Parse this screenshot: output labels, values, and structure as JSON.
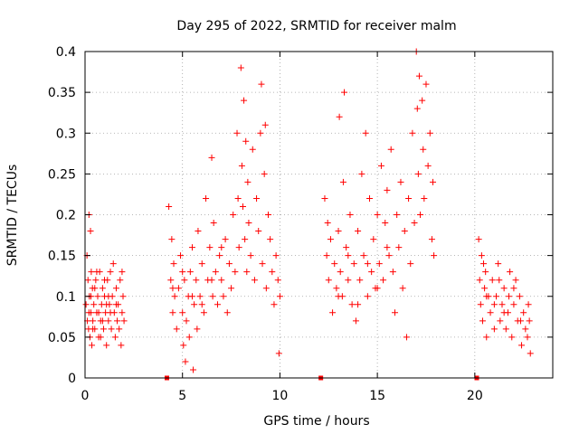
{
  "chart_data": {
    "type": "scatter",
    "title": "Day 295 of 2022, SRMTID for receiver malm",
    "xlabel": "GPS time / hours",
    "ylabel": "SRMTID / TECUs",
    "xlim": [
      0,
      24
    ],
    "ylim": [
      0,
      0.4
    ],
    "xticks": [
      0,
      5,
      10,
      15,
      20
    ],
    "xtick_labels": [
      "0",
      "5",
      "10",
      "15",
      "20"
    ],
    "yticks": [
      0,
      0.05,
      0.1,
      0.15,
      0.2,
      0.25,
      0.3,
      0.35,
      0.4
    ],
    "ytick_labels": [
      "0",
      "0.05",
      "0.1",
      "0.15",
      "0.2",
      "0.25",
      "0.3",
      "0.35",
      "0.4"
    ],
    "grid": true,
    "marker": "+",
    "color": "#ff0000",
    "gap_markers": [
      {
        "x": 4.2,
        "y": 0
      },
      {
        "x": 12.1,
        "y": 0
      },
      {
        "x": 20.1,
        "y": 0
      }
    ],
    "series": [
      {
        "name": "malm",
        "points": [
          [
            0.05,
            0.09
          ],
          [
            0.1,
            0.15
          ],
          [
            0.12,
            0.07
          ],
          [
            0.15,
            0.12
          ],
          [
            0.18,
            0.06
          ],
          [
            0.2,
            0.2
          ],
          [
            0.22,
            0.1
          ],
          [
            0.25,
            0.05
          ],
          [
            0.28,
            0.18
          ],
          [
            0.3,
            0.08
          ],
          [
            0.32,
            0.13
          ],
          [
            0.35,
            0.04
          ],
          [
            0.38,
            0.11
          ],
          [
            0.4,
            0.07
          ],
          [
            0.45,
            0.09
          ],
          [
            0.5,
            0.06
          ],
          [
            0.55,
            0.12
          ],
          [
            0.6,
            0.08
          ],
          [
            0.65,
            0.1
          ],
          [
            0.7,
            0.05
          ],
          [
            0.75,
            0.13
          ],
          [
            0.8,
            0.07
          ],
          [
            0.85,
            0.09
          ],
          [
            0.9,
            0.11
          ],
          [
            0.95,
            0.06
          ],
          [
            1.0,
            0.1
          ],
          [
            1.05,
            0.08
          ],
          [
            1.1,
            0.04
          ],
          [
            1.15,
            0.12
          ],
          [
            1.2,
            0.07
          ],
          [
            1.25,
            0.09
          ],
          [
            1.3,
            0.13
          ],
          [
            1.35,
            0.06
          ],
          [
            1.4,
            0.1
          ],
          [
            1.45,
            0.14
          ],
          [
            1.5,
            0.08
          ],
          [
            1.55,
            0.05
          ],
          [
            1.6,
            0.11
          ],
          [
            1.65,
            0.07
          ],
          [
            1.7,
            0.09
          ],
          [
            1.75,
            0.06
          ],
          [
            1.8,
            0.12
          ],
          [
            1.85,
            0.04
          ],
          [
            1.9,
            0.08
          ],
          [
            1.95,
            0.1
          ],
          [
            2.0,
            0.07
          ],
          [
            0.3,
            0.1
          ],
          [
            0.6,
            0.13
          ],
          [
            0.9,
            0.07
          ],
          [
            1.2,
            0.1
          ],
          [
            0.4,
            0.06
          ],
          [
            0.7,
            0.08
          ],
          [
            1.0,
            0.12
          ],
          [
            1.3,
            0.08
          ],
          [
            1.6,
            0.09
          ],
          [
            1.9,
            0.13
          ],
          [
            0.2,
            0.08
          ],
          [
            0.5,
            0.11
          ],
          [
            0.8,
            0.05
          ],
          [
            1.1,
            0.09
          ],
          [
            4.3,
            0.21
          ],
          [
            4.4,
            0.12
          ],
          [
            4.45,
            0.17
          ],
          [
            4.5,
            0.08
          ],
          [
            4.55,
            0.14
          ],
          [
            4.6,
            0.1
          ],
          [
            4.7,
            0.06
          ],
          [
            4.8,
            0.11
          ],
          [
            4.9,
            0.15
          ],
          [
            5.0,
            0.08
          ],
          [
            5.05,
            0.04
          ],
          [
            5.1,
            0.12
          ],
          [
            5.15,
            0.02
          ],
          [
            5.2,
            0.07
          ],
          [
            5.3,
            0.1
          ],
          [
            5.35,
            0.05
          ],
          [
            5.4,
            0.13
          ],
          [
            5.5,
            0.16
          ],
          [
            5.55,
            0.01
          ],
          [
            5.6,
            0.09
          ],
          [
            5.7,
            0.12
          ],
          [
            5.75,
            0.06
          ],
          [
            5.8,
            0.18
          ],
          [
            5.9,
            0.1
          ],
          [
            6.0,
            0.14
          ],
          [
            6.1,
            0.08
          ],
          [
            6.2,
            0.22
          ],
          [
            6.3,
            0.12
          ],
          [
            6.4,
            0.16
          ],
          [
            6.5,
            0.27
          ],
          [
            6.55,
            0.1
          ],
          [
            6.6,
            0.19
          ],
          [
            6.7,
            0.13
          ],
          [
            6.8,
            0.09
          ],
          [
            6.9,
            0.15
          ],
          [
            7.0,
            0.12
          ],
          [
            7.1,
            0.1
          ],
          [
            7.2,
            0.17
          ],
          [
            7.3,
            0.08
          ],
          [
            7.4,
            0.14
          ],
          [
            7.5,
            0.11
          ],
          [
            7.6,
            0.2
          ],
          [
            7.7,
            0.13
          ],
          [
            7.8,
            0.3
          ],
          [
            7.85,
            0.22
          ],
          [
            7.9,
            0.16
          ],
          [
            8.0,
            0.38
          ],
          [
            8.05,
            0.26
          ],
          [
            8.1,
            0.21
          ],
          [
            8.15,
            0.34
          ],
          [
            8.2,
            0.17
          ],
          [
            8.25,
            0.29
          ],
          [
            8.3,
            0.13
          ],
          [
            8.35,
            0.24
          ],
          [
            8.4,
            0.19
          ],
          [
            8.5,
            0.15
          ],
          [
            8.6,
            0.28
          ],
          [
            8.7,
            0.12
          ],
          [
            8.8,
            0.22
          ],
          [
            8.9,
            0.18
          ],
          [
            9.0,
            0.3
          ],
          [
            9.05,
            0.36
          ],
          [
            9.1,
            0.14
          ],
          [
            9.2,
            0.25
          ],
          [
            9.25,
            0.31
          ],
          [
            9.3,
            0.11
          ],
          [
            9.4,
            0.2
          ],
          [
            9.5,
            0.17
          ],
          [
            9.6,
            0.13
          ],
          [
            9.7,
            0.09
          ],
          [
            9.8,
            0.15
          ],
          [
            9.9,
            0.12
          ],
          [
            10.0,
            0.1
          ],
          [
            9.95,
            0.03
          ],
          [
            4.5,
            0.11
          ],
          [
            5.0,
            0.13
          ],
          [
            5.5,
            0.1
          ],
          [
            6.0,
            0.09
          ],
          [
            6.5,
            0.12
          ],
          [
            7.0,
            0.16
          ],
          [
            12.3,
            0.22
          ],
          [
            12.4,
            0.15
          ],
          [
            12.45,
            0.19
          ],
          [
            12.5,
            0.12
          ],
          [
            12.6,
            0.17
          ],
          [
            12.7,
            0.08
          ],
          [
            12.8,
            0.14
          ],
          [
            12.9,
            0.11
          ],
          [
            13.0,
            0.18
          ],
          [
            13.05,
            0.32
          ],
          [
            13.1,
            0.13
          ],
          [
            13.2,
            0.1
          ],
          [
            13.25,
            0.24
          ],
          [
            13.3,
            0.35
          ],
          [
            13.4,
            0.16
          ],
          [
            13.5,
            0.12
          ],
          [
            13.6,
            0.2
          ],
          [
            13.7,
            0.09
          ],
          [
            13.8,
            0.14
          ],
          [
            13.9,
            0.07
          ],
          [
            14.0,
            0.18
          ],
          [
            14.1,
            0.12
          ],
          [
            14.2,
            0.25
          ],
          [
            14.3,
            0.15
          ],
          [
            14.4,
            0.3
          ],
          [
            14.5,
            0.1
          ],
          [
            14.6,
            0.22
          ],
          [
            14.7,
            0.13
          ],
          [
            14.8,
            0.17
          ],
          [
            14.9,
            0.11
          ],
          [
            15.0,
            0.2
          ],
          [
            15.1,
            0.14
          ],
          [
            15.2,
            0.26
          ],
          [
            15.3,
            0.12
          ],
          [
            15.4,
            0.19
          ],
          [
            15.5,
            0.23
          ],
          [
            15.6,
            0.15
          ],
          [
            15.7,
            0.28
          ],
          [
            15.8,
            0.13
          ],
          [
            15.9,
            0.08
          ],
          [
            16.0,
            0.2
          ],
          [
            16.1,
            0.16
          ],
          [
            16.2,
            0.24
          ],
          [
            16.3,
            0.11
          ],
          [
            16.4,
            0.18
          ],
          [
            16.5,
            0.05
          ],
          [
            16.6,
            0.22
          ],
          [
            16.7,
            0.14
          ],
          [
            16.8,
            0.3
          ],
          [
            16.9,
            0.19
          ],
          [
            17.0,
            0.4
          ],
          [
            17.05,
            0.33
          ],
          [
            17.1,
            0.25
          ],
          [
            17.15,
            0.37
          ],
          [
            17.2,
            0.2
          ],
          [
            17.3,
            0.34
          ],
          [
            17.35,
            0.28
          ],
          [
            17.4,
            0.22
          ],
          [
            17.5,
            0.36
          ],
          [
            17.6,
            0.26
          ],
          [
            17.7,
            0.3
          ],
          [
            17.8,
            0.17
          ],
          [
            17.85,
            0.24
          ],
          [
            17.9,
            0.15
          ],
          [
            13.0,
            0.1
          ],
          [
            13.5,
            0.15
          ],
          [
            14.0,
            0.09
          ],
          [
            14.5,
            0.14
          ],
          [
            15.0,
            0.11
          ],
          [
            15.5,
            0.16
          ],
          [
            20.2,
            0.17
          ],
          [
            20.25,
            0.12
          ],
          [
            20.3,
            0.09
          ],
          [
            20.35,
            0.15
          ],
          [
            20.4,
            0.07
          ],
          [
            20.5,
            0.11
          ],
          [
            20.55,
            0.13
          ],
          [
            20.6,
            0.05
          ],
          [
            20.7,
            0.1
          ],
          [
            20.8,
            0.08
          ],
          [
            20.9,
            0.12
          ],
          [
            21.0,
            0.06
          ],
          [
            21.1,
            0.1
          ],
          [
            21.2,
            0.14
          ],
          [
            21.3,
            0.07
          ],
          [
            21.4,
            0.09
          ],
          [
            21.5,
            0.11
          ],
          [
            21.6,
            0.06
          ],
          [
            21.7,
            0.08
          ],
          [
            21.8,
            0.13
          ],
          [
            21.9,
            0.05
          ],
          [
            22.0,
            0.09
          ],
          [
            22.1,
            0.12
          ],
          [
            22.2,
            0.07
          ],
          [
            22.3,
            0.1
          ],
          [
            22.4,
            0.04
          ],
          [
            22.5,
            0.08
          ],
          [
            22.6,
            0.06
          ],
          [
            22.7,
            0.05
          ],
          [
            22.8,
            0.07
          ],
          [
            22.85,
            0.03
          ],
          [
            22.75,
            0.09
          ],
          [
            21.0,
            0.09
          ],
          [
            21.5,
            0.08
          ],
          [
            22.0,
            0.11
          ],
          [
            20.6,
            0.1
          ],
          [
            21.25,
            0.12
          ],
          [
            22.35,
            0.07
          ],
          [
            20.45,
            0.14
          ],
          [
            21.75,
            0.1
          ]
        ]
      }
    ]
  }
}
